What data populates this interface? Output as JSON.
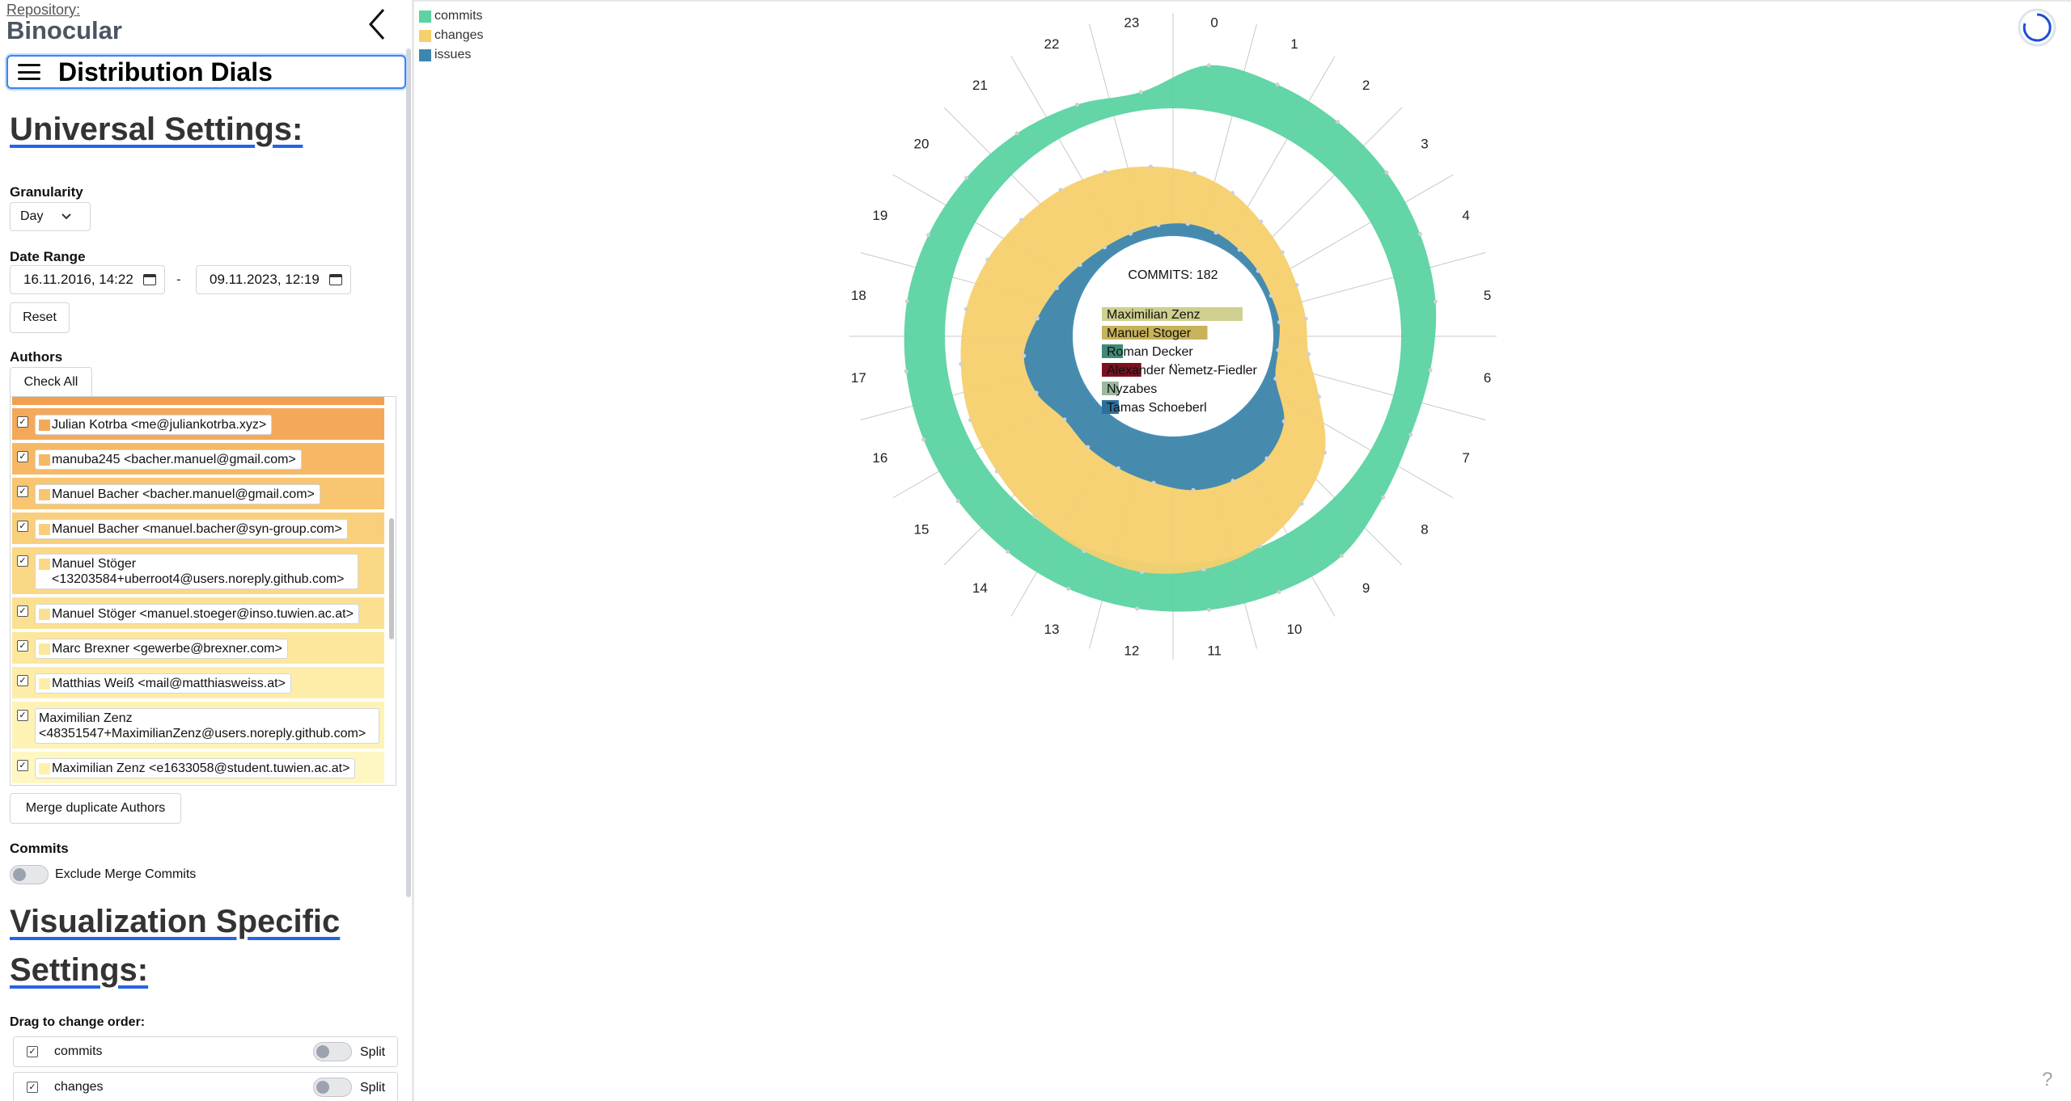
{
  "repository": {
    "label": "Repository:",
    "name": "Binocular"
  },
  "visualization": {
    "title": "Distribution Dials"
  },
  "universal_settings": {
    "heading": "Universal Settings:",
    "granularity": {
      "label": "Granularity",
      "value": "Day"
    },
    "date_range": {
      "label": "Date Range",
      "from": "16.11.2016, 14:22",
      "separator": "-",
      "to": "09.11.2023, 12:19"
    },
    "reset_label": "Reset",
    "authors": {
      "label": "Authors",
      "check_all_label": "Check All",
      "items": [
        {
          "text": "Julian Kotrba <me@juliankotrba.xyz>",
          "checked": true,
          "color": "#f4a95a",
          "swatch": "#f4a95a"
        },
        {
          "text": "manuba245 <bacher.manuel@gmail.com>",
          "checked": true,
          "color": "#f6b865",
          "swatch": "#f6b865"
        },
        {
          "text": "Manuel Bacher <bacher.manuel@gmail.com>",
          "checked": true,
          "color": "#f8c570",
          "swatch": "#f8c570"
        },
        {
          "text": "Manuel Bacher <manuel.bacher@syn-group.com>",
          "checked": true,
          "color": "#f9cf7b",
          "swatch": "#f9cf7b"
        },
        {
          "text": "Manuel Stöger <13203584+uberroot4@users.noreply.github.com>",
          "checked": true,
          "color": "#fbd886",
          "swatch": "#fbd886"
        },
        {
          "text": "Manuel Stöger <manuel.stoeger@inso.tuwien.ac.at>",
          "checked": true,
          "color": "#fce091",
          "swatch": "#fce091"
        },
        {
          "text": "Marc Brexner <gewerbe@brexner.com>",
          "checked": true,
          "color": "#fde79c",
          "swatch": "#fde79c"
        },
        {
          "text": "Matthias Weiß <mail@matthiasweiss.at>",
          "checked": true,
          "color": "#feeda8",
          "swatch": "#feeda8"
        },
        {
          "text": "Maximilian Zenz <48351547+MaximilianZenz@users.noreply.github.com>",
          "checked": true,
          "color": "#fef3b4",
          "swatch": ""
        },
        {
          "text": "Maximilian Zenz <e1633058@student.tuwien.ac.at>",
          "checked": true,
          "color": "#fff7c2",
          "swatch": "#fff1a8"
        }
      ]
    },
    "merge_label": "Merge duplicate Authors",
    "commits": {
      "label": "Commits",
      "exclude_merge_label": "Exclude Merge Commits"
    }
  },
  "visualization_settings": {
    "heading_line1": "Visualization Specific",
    "heading_line2": "Settings:",
    "drag_label": "Drag to change order:",
    "rows": [
      {
        "label": "commits",
        "checked": true,
        "split_label": "Split"
      },
      {
        "label": "changes",
        "checked": true,
        "split_label": "Split"
      }
    ]
  },
  "legend": [
    {
      "label": "commits",
      "color": "#5cd3a1"
    },
    {
      "label": "changes",
      "color": "#f5d06e"
    },
    {
      "label": "issues",
      "color": "#3c87b0"
    }
  ],
  "colors": {
    "commits": "#5cd3a1",
    "changes": "#f5d06e",
    "issues": "#3c87b0",
    "accent": "#2563eb"
  },
  "icons": {
    "back": "chevron-left-icon",
    "menu": "hamburger-menu-icon",
    "calendar": "calendar-icon",
    "refresh": "refresh-icon",
    "help": "help-icon"
  },
  "help_text": "?",
  "chart_data": {
    "type": "radial-area",
    "hours": [
      "0",
      "1",
      "2",
      "3",
      "4",
      "5",
      "6",
      "7",
      "8",
      "9",
      "10",
      "11",
      "12",
      "13",
      "14",
      "15",
      "16",
      "17",
      "18",
      "19",
      "20",
      "21",
      "22",
      "23"
    ],
    "series": [
      {
        "name": "commits",
        "values": [
          0.92,
          0.9,
          0.85,
          0.82,
          0.78,
          0.72,
          0.6,
          0.55,
          0.72,
          1.0,
          1.0,
          0.98,
          0.95,
          0.92,
          0.88,
          0.86,
          0.84,
          0.82,
          0.8,
          0.72,
          0.62,
          0.52,
          0.4,
          0.3
        ]
      },
      {
        "name": "changes",
        "values": [
          0.35,
          0.28,
          0.2,
          0.15,
          0.12,
          0.12,
          0.14,
          0.3,
          0.55,
          0.7,
          0.82,
          0.88,
          0.9,
          0.86,
          0.82,
          0.78,
          0.76,
          0.72,
          0.68,
          0.62,
          0.55,
          0.5,
          0.45,
          0.4
        ]
      },
      {
        "name": "issues",
        "values": [
          0.12,
          0.1,
          0.05,
          0.02,
          0.0,
          0.02,
          0.0,
          0.08,
          0.55,
          0.78,
          0.82,
          0.8,
          0.68,
          0.6,
          0.55,
          0.5,
          0.68,
          0.72,
          0.5,
          0.32,
          0.18,
          0.1,
          0.08,
          0.1
        ]
      }
    ],
    "center": {
      "title": "COMMITS: 182",
      "authors": [
        {
          "name": "Maximilian Zenz",
          "color": "#cfcf8f",
          "value": 1.0
        },
        {
          "name": "Manuel Stoger",
          "color": "#c8b25a",
          "value": 0.75
        },
        {
          "name": "Roman Decker",
          "color": "#3f8a78",
          "value": 0.15
        },
        {
          "name": "Alexander Nemetz-Fiedler",
          "color": "#7a1020",
          "value": 0.28
        },
        {
          "name": "Nyzabes",
          "color": "#9cb8a0",
          "value": 0.12
        },
        {
          "name": "Tamas Schoeberl",
          "color": "#2e6f9e",
          "value": 0.12
        }
      ],
      "more": "..."
    }
  }
}
